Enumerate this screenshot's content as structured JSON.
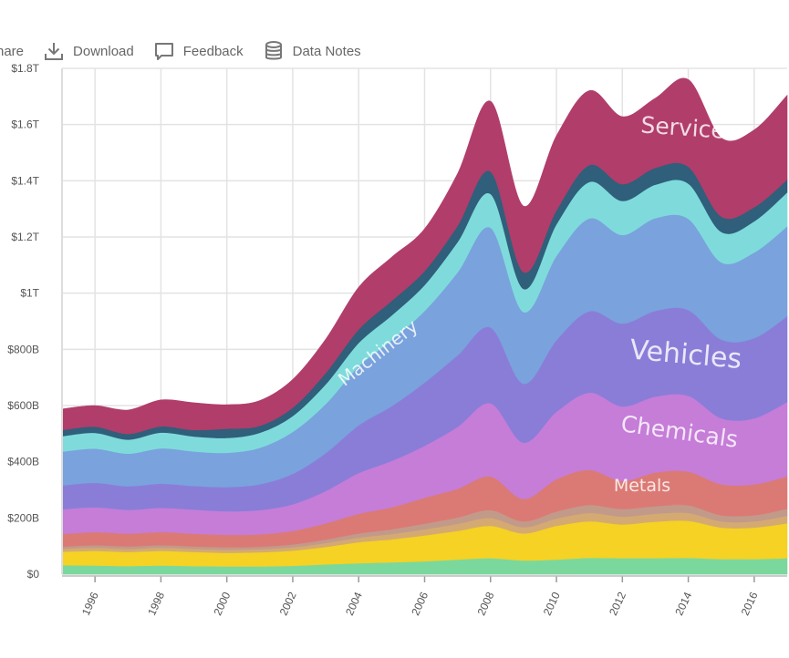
{
  "toolbar": {
    "share_label": "hare",
    "download_label": "Download",
    "feedback_label": "Feedback",
    "datanotes_label": "Data Notes"
  },
  "icons": {
    "download": "download-icon",
    "feedback": "feedback-icon",
    "datanotes": "database-icon"
  },
  "chart_data": {
    "type": "area",
    "x": [
      1995,
      1996,
      1997,
      1998,
      1999,
      2000,
      2001,
      2002,
      2003,
      2004,
      2005,
      2006,
      2007,
      2008,
      2009,
      2010,
      2011,
      2012,
      2013,
      2014,
      2015,
      2016,
      2017
    ],
    "xlim": [
      1995,
      2017
    ],
    "ylim": [
      0,
      1800000000000
    ],
    "x_ticks": [
      "1996",
      "1998",
      "2000",
      "2002",
      "2004",
      "2006",
      "2008",
      "2010",
      "2012",
      "2014",
      "2016"
    ],
    "y_ticks": [
      {
        "value": 0,
        "label": "$0"
      },
      {
        "value": 200000000000,
        "label": "$200B"
      },
      {
        "value": 400000000000,
        "label": "$400B"
      },
      {
        "value": 600000000000,
        "label": "$600B"
      },
      {
        "value": 800000000000,
        "label": "$800B"
      },
      {
        "value": 1000000000000,
        "label": "$1T"
      },
      {
        "value": 1200000000000,
        "label": "$1.2T"
      },
      {
        "value": 1400000000000,
        "label": "$1.4T"
      },
      {
        "value": 1600000000000,
        "label": "$1.6T"
      },
      {
        "value": 1800000000000,
        "label": "$1.8T"
      }
    ],
    "grid": true,
    "series": [
      {
        "color": "#7bd89d",
        "values": [
          32,
          31,
          29,
          31,
          29,
          28,
          28,
          30,
          35,
          39,
          42,
          46,
          52,
          57,
          49,
          52,
          58,
          57,
          57,
          58,
          54,
          54,
          57
        ]
      },
      {
        "color": "#f5d223",
        "values": [
          48,
          52,
          50,
          52,
          50,
          48,
          50,
          54,
          62,
          75,
          82,
          92,
          102,
          115,
          96,
          120,
          130,
          120,
          130,
          132,
          112,
          112,
          124
        ]
      },
      {
        "color": "#d4aa72",
        "values": [
          10,
          11,
          11,
          11,
          11,
          11,
          11,
          12,
          14,
          16,
          19,
          22,
          25,
          28,
          22,
          26,
          30,
          28,
          28,
          28,
          22,
          22,
          27
        ]
      },
      {
        "color": "#c29a8a",
        "values": [
          8,
          9,
          9,
          9,
          9,
          9,
          9,
          10,
          12,
          15,
          17,
          20,
          23,
          28,
          21,
          25,
          28,
          27,
          27,
          27,
          22,
          22,
          25
        ]
      },
      {
        "color": "#db7a75",
        "values": [
          45,
          47,
          46,
          47,
          45,
          44,
          44,
          48,
          58,
          70,
          78,
          92,
          102,
          120,
          80,
          115,
          125,
          100,
          120,
          120,
          110,
          110,
          115
        ]
      },
      {
        "color": "#c57dd8",
        "values": [
          88,
          88,
          84,
          86,
          86,
          84,
          86,
          95,
          115,
          145,
          165,
          185,
          220,
          260,
          200,
          240,
          275,
          265,
          270,
          270,
          235,
          235,
          265
        ]
      },
      {
        "color": "#8a7dd8",
        "values": [
          85,
          87,
          84,
          86,
          84,
          86,
          92,
          108,
          135,
          170,
          195,
          225,
          255,
          270,
          210,
          255,
          290,
          295,
          305,
          305,
          280,
          285,
          305
        ]
      },
      {
        "color": "#7aa2dd",
        "values": [
          120,
          122,
          116,
          126,
          123,
          122,
          130,
          150,
          175,
          210,
          235,
          255,
          295,
          355,
          255,
          300,
          330,
          315,
          330,
          325,
          275,
          305,
          320
        ]
      },
      {
        "color": "#7fdbdb",
        "values": [
          55,
          56,
          50,
          56,
          53,
          53,
          53,
          56,
          70,
          83,
          88,
          92,
          108,
          120,
          82,
          112,
          130,
          121,
          119,
          125,
          108,
          111,
          121
        ]
      },
      {
        "color": "#2f5f7a",
        "values": [
          22,
          22,
          20,
          22,
          23,
          33,
          25,
          30,
          40,
          48,
          52,
          50,
          58,
          80,
          60,
          50,
          60,
          60,
          60,
          60,
          55,
          50,
          45
        ]
      },
      {
        "color": "#b13d6b",
        "values": [
          75,
          75,
          85,
          94,
          97,
          85,
          90,
          100,
          120,
          150,
          155,
          150,
          185,
          250,
          235,
          265,
          265,
          240,
          248,
          310,
          280,
          275,
          300
        ]
      }
    ],
    "annotations": [
      {
        "text": "Machinery",
        "x": 2004.7,
        "y": 770000000000,
        "rotate": -38,
        "size": 20
      },
      {
        "text": "Services",
        "x": 2014.0,
        "y": 1560000000000,
        "rotate": 4,
        "size": 25
      },
      {
        "text": "Vehicles",
        "x": 2013.9,
        "y": 750000000000,
        "rotate": 5,
        "size": 30
      },
      {
        "text": "Chemicals",
        "x": 2013.7,
        "y": 480000000000,
        "rotate": 8,
        "size": 25
      },
      {
        "text": "Metals",
        "x": 2012.6,
        "y": 295000000000,
        "rotate": 0,
        "size": 19
      }
    ]
  }
}
